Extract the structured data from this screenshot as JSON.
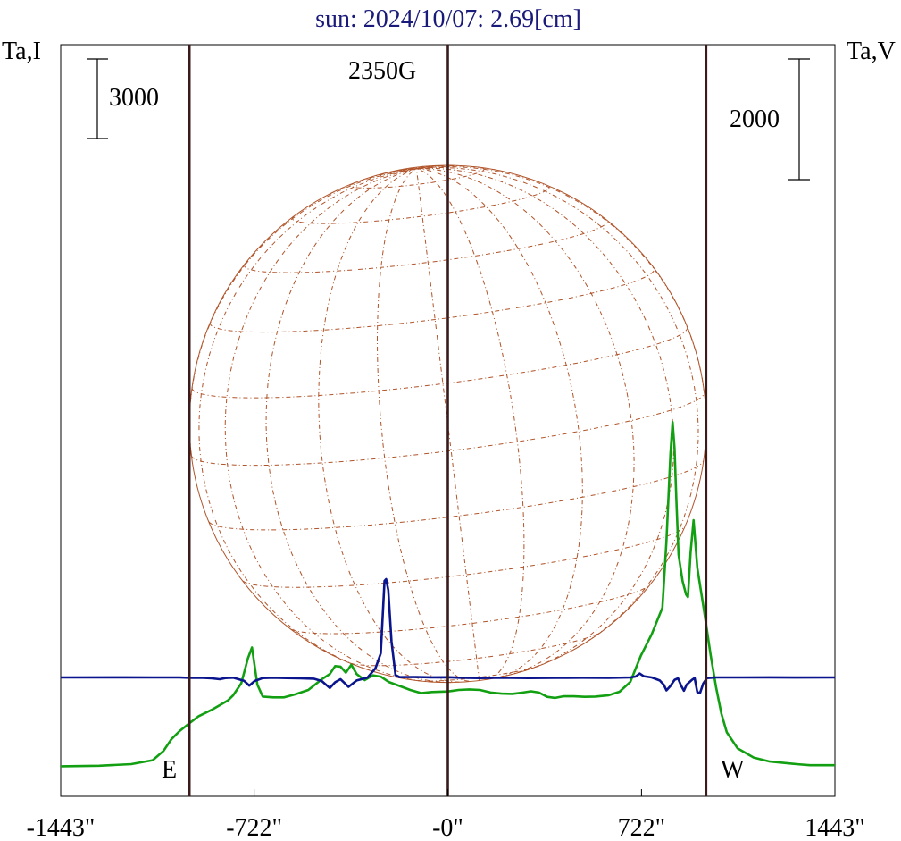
{
  "chart_data": {
    "type": "line",
    "title": "sun: 2024/10/07: 2.69[cm]",
    "left_axis_label": "Ta,I",
    "right_axis_label": "Ta,V",
    "scale_bar_left": "3000",
    "scale_bar_right": "2000",
    "annotation": "2350G",
    "limb_labels": {
      "east": "E",
      "west": "W"
    },
    "x_ticks": [
      {
        "value": -1443,
        "label": "-1443\""
      },
      {
        "value": -722,
        "label": "-722\""
      },
      {
        "value": 0,
        "label": "-0\""
      },
      {
        "value": 722,
        "label": "722\""
      },
      {
        "value": 1443,
        "label": "1443\""
      }
    ],
    "xlim": [
      -1443,
      1443
    ],
    "vertical_markers": [
      -963,
      0,
      963
    ],
    "solar_disk_radius": 963,
    "colors": {
      "title": "#1a1a7a",
      "intensity": "#12a012",
      "polarization": "#0a148c",
      "markers": "#3a1a1a",
      "grid": "#b0542a"
    },
    "series": [
      {
        "name": "I",
        "units": "relative (scale bar 3000)",
        "points": [
          [
            -1443,
            2.0
          ],
          [
            -1300,
            4.0
          ],
          [
            -1180,
            10.0
          ],
          [
            -1100,
            25.0
          ],
          [
            -1060,
            60.0
          ],
          [
            -1030,
            105.0
          ],
          [
            -1000,
            135.0
          ],
          [
            -960,
            167.0
          ],
          [
            -930,
            190.0
          ],
          [
            -880,
            215.0
          ],
          [
            -820,
            250.0
          ],
          [
            -800,
            270.0
          ],
          [
            -770,
            315.0
          ],
          [
            -745,
            410.0
          ],
          [
            -730,
            450.0
          ],
          [
            -710,
            310.0
          ],
          [
            -690,
            265.0
          ],
          [
            -650,
            262.0
          ],
          [
            -610,
            262.0
          ],
          [
            -570,
            273.0
          ],
          [
            -520,
            290.0
          ],
          [
            -470,
            330.0
          ],
          [
            -440,
            350.0
          ],
          [
            -420,
            380.0
          ],
          [
            -400,
            378.0
          ],
          [
            -380,
            355.0
          ],
          [
            -360,
            385.0
          ],
          [
            -340,
            350.0
          ],
          [
            -310,
            327.0
          ],
          [
            -280,
            345.0
          ],
          [
            -250,
            340.0
          ],
          [
            -220,
            320.0
          ],
          [
            -180,
            305.0
          ],
          [
            -140,
            290.0
          ],
          [
            -100,
            278.0
          ],
          [
            -60,
            282.0
          ],
          [
            0,
            284.0
          ],
          [
            40,
            290.0
          ],
          [
            80,
            292.0
          ],
          [
            120,
            290.0
          ],
          [
            160,
            280.0
          ],
          [
            200,
            276.0
          ],
          [
            240,
            275.0
          ],
          [
            280,
            280.0
          ],
          [
            310,
            285.0
          ],
          [
            340,
            280.0
          ],
          [
            370,
            264.0
          ],
          [
            400,
            260.0
          ],
          [
            430,
            266.0
          ],
          [
            470,
            266.0
          ],
          [
            510,
            264.0
          ],
          [
            550,
            265.0
          ],
          [
            600,
            270.0
          ],
          [
            640,
            283.0
          ],
          [
            680,
            320.0
          ],
          [
            720,
            420.0
          ],
          [
            760,
            500.0
          ],
          [
            800,
            600.0
          ],
          [
            815,
            850.0
          ],
          [
            830,
            1180.0
          ],
          [
            838,
            1300.0
          ],
          [
            845,
            1200.0
          ],
          [
            852,
            1000.0
          ],
          [
            860,
            800.0
          ],
          [
            875,
            700.0
          ],
          [
            888,
            650.0
          ],
          [
            895,
            640.0
          ],
          [
            905,
            810.0
          ],
          [
            916,
            930.0
          ],
          [
            930,
            750.0
          ],
          [
            955,
            590.0
          ],
          [
            980,
            420.0
          ],
          [
            1000,
            300.0
          ],
          [
            1020,
            200.0
          ],
          [
            1040,
            130.0
          ],
          [
            1080,
            70.0
          ],
          [
            1140,
            35.0
          ],
          [
            1200,
            20.0
          ],
          [
            1300,
            10.0
          ],
          [
            1350,
            6.0
          ],
          [
            1443,
            6.0
          ]
        ]
      },
      {
        "name": "V",
        "units": "relative (scale bar 2000)",
        "points": [
          [
            -1443,
            0.0
          ],
          [
            -1200,
            2.0
          ],
          [
            -1100,
            0.0
          ],
          [
            -1000,
            0.0
          ],
          [
            -960,
            -7.0
          ],
          [
            -920,
            -5.0
          ],
          [
            -880,
            -15.0
          ],
          [
            -850,
            -30.0
          ],
          [
            -830,
            -10.0
          ],
          [
            -800,
            -5.0
          ],
          [
            -760,
            -55.0
          ],
          [
            -740,
            -135.0
          ],
          [
            -720,
            -60.0
          ],
          [
            -690,
            -10.0
          ],
          [
            -650,
            -5.0
          ],
          [
            -600,
            -10.0
          ],
          [
            -550,
            -15.0
          ],
          [
            -500,
            -20.0
          ],
          [
            -470,
            -60.0
          ],
          [
            -440,
            -175.0
          ],
          [
            -420,
            -80.0
          ],
          [
            -400,
            -30.0
          ],
          [
            -370,
            -155.0
          ],
          [
            -340,
            -50.0
          ],
          [
            -300,
            -5.0
          ],
          [
            -270,
            150.0
          ],
          [
            -250,
            400.0
          ],
          [
            -236,
            1600.0
          ],
          [
            -230,
            1630.0
          ],
          [
            -222,
            1450.0
          ],
          [
            -210,
            600.0
          ],
          [
            -195,
            40.0
          ],
          [
            -180,
            5.0
          ],
          [
            -120,
            8.0
          ],
          [
            -60,
            2.0
          ],
          [
            0,
            3.0
          ],
          [
            40,
            -5.0
          ],
          [
            120,
            -10.0
          ],
          [
            200,
            -5.0
          ],
          [
            300,
            -10.0
          ],
          [
            400,
            -8.0
          ],
          [
            500,
            -5.0
          ],
          [
            600,
            -8.0
          ],
          [
            680,
            0.0
          ],
          [
            700,
            15.0
          ],
          [
            715,
            65.0
          ],
          [
            730,
            20.0
          ],
          [
            760,
            0.0
          ],
          [
            790,
            -50.0
          ],
          [
            805,
            -120.0
          ],
          [
            815,
            -215.0
          ],
          [
            830,
            -140.0
          ],
          [
            845,
            -40.0
          ],
          [
            858,
            -15.0
          ],
          [
            870,
            -140.0
          ],
          [
            880,
            -220.0
          ],
          [
            890,
            -120.0
          ],
          [
            910,
            -40.0
          ],
          [
            920,
            -10.0
          ],
          [
            930,
            -245.0
          ],
          [
            940,
            -260.0
          ],
          [
            952,
            -100.0
          ],
          [
            966,
            -10.0
          ],
          [
            1000,
            0.0
          ],
          [
            1100,
            0.0
          ],
          [
            1200,
            2.0
          ],
          [
            1300,
            -2.0
          ],
          [
            1443,
            0.0
          ]
        ]
      }
    ]
  }
}
